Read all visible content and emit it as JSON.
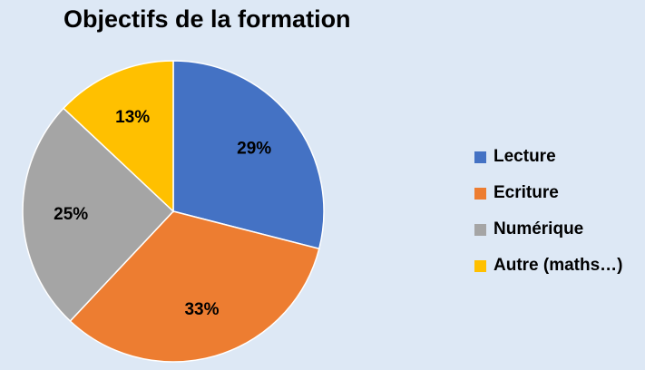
{
  "chart_data": {
    "type": "pie",
    "title": "Objectifs de la formation",
    "categories": [
      "Lecture",
      "Ecriture",
      "Numérique",
      "Autre (maths…)"
    ],
    "values": [
      29,
      33,
      25,
      13
    ],
    "value_labels": [
      "29%",
      "33%",
      "25%",
      "13%"
    ],
    "colors": [
      "#4472c4",
      "#ed7d31",
      "#a5a5a5",
      "#ffc000"
    ],
    "legend_position": "right"
  }
}
